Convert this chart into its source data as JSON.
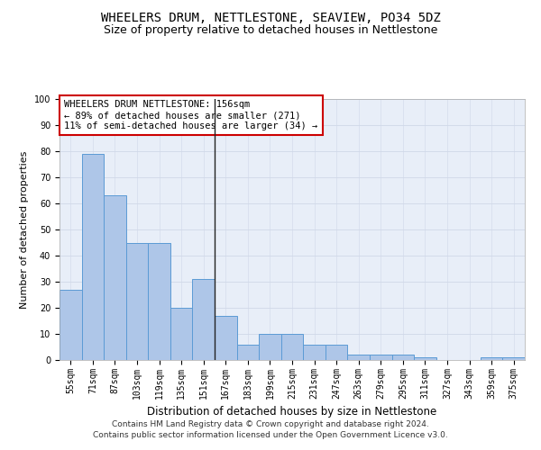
{
  "title": "WHEELERS DRUM, NETTLESTONE, SEAVIEW, PO34 5DZ",
  "subtitle": "Size of property relative to detached houses in Nettlestone",
  "xlabel": "Distribution of detached houses by size in Nettlestone",
  "ylabel": "Number of detached properties",
  "bar_color": "#aec6e8",
  "bar_edge_color": "#5b9bd5",
  "categories": [
    "55sqm",
    "71sqm",
    "87sqm",
    "103sqm",
    "119sqm",
    "135sqm",
    "151sqm",
    "167sqm",
    "183sqm",
    "199sqm",
    "215sqm",
    "231sqm",
    "247sqm",
    "263sqm",
    "279sqm",
    "295sqm",
    "311sqm",
    "327sqm",
    "343sqm",
    "359sqm",
    "375sqm"
  ],
  "values": [
    27,
    79,
    63,
    45,
    45,
    20,
    31,
    17,
    6,
    10,
    10,
    6,
    6,
    2,
    2,
    2,
    1,
    0,
    0,
    1,
    1
  ],
  "vline_index": 7,
  "vline_color": "#222222",
  "annotation_text": "WHEELERS DRUM NETTLESTONE: 156sqm\n← 89% of detached houses are smaller (271)\n11% of semi-detached houses are larger (34) →",
  "annotation_box_color": "#ffffff",
  "annotation_box_edge_color": "#cc0000",
  "ylim": [
    0,
    100
  ],
  "yticks": [
    0,
    10,
    20,
    30,
    40,
    50,
    60,
    70,
    80,
    90,
    100
  ],
  "grid_color": "#d0d8e8",
  "bg_color": "#e8eef8",
  "footer_text": "Contains HM Land Registry data © Crown copyright and database right 2024.\nContains public sector information licensed under the Open Government Licence v3.0.",
  "title_fontsize": 10,
  "subtitle_fontsize": 9,
  "xlabel_fontsize": 8.5,
  "ylabel_fontsize": 8,
  "tick_fontsize": 7,
  "annotation_fontsize": 7.5,
  "footer_fontsize": 6.5
}
